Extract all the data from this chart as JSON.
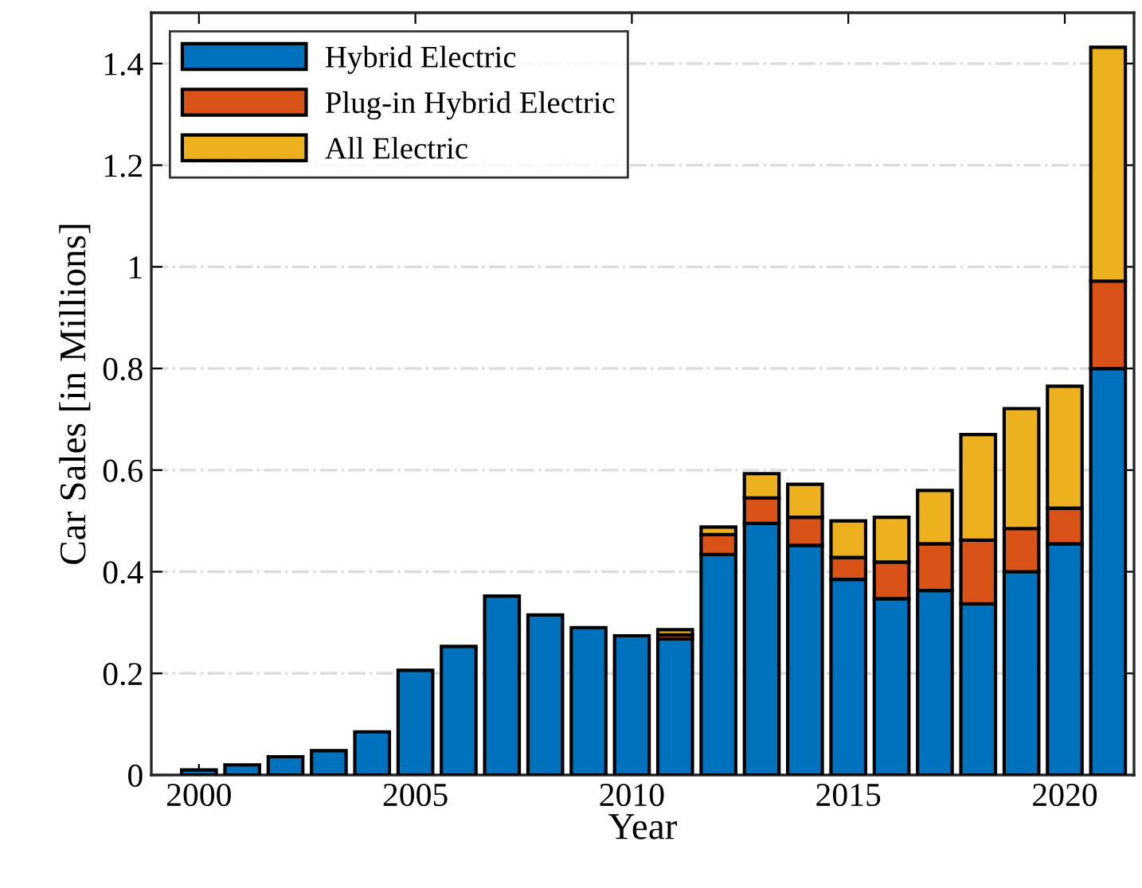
{
  "chart_data": {
    "type": "bar",
    "stacked": true,
    "xlabel": "Year",
    "ylabel": "Car Sales [in Millions]",
    "x": [
      2000,
      2001,
      2002,
      2003,
      2004,
      2005,
      2006,
      2007,
      2008,
      2009,
      2010,
      2011,
      2012,
      2013,
      2014,
      2015,
      2016,
      2017,
      2018,
      2019,
      2020,
      2021
    ],
    "series": [
      {
        "name": "Hybrid Electric",
        "color": "#0072bd",
        "values": [
          0.01,
          0.02,
          0.036,
          0.048,
          0.085,
          0.206,
          0.253,
          0.352,
          0.315,
          0.29,
          0.274,
          0.268,
          0.434,
          0.495,
          0.452,
          0.385,
          0.347,
          0.363,
          0.337,
          0.4,
          0.455,
          0.8
        ]
      },
      {
        "name": "Plug-in Hybrid Electric",
        "color": "#d95319",
        "values": [
          0,
          0,
          0,
          0,
          0,
          0,
          0,
          0,
          0,
          0,
          0,
          0.008,
          0.039,
          0.05,
          0.055,
          0.043,
          0.072,
          0.092,
          0.125,
          0.085,
          0.07,
          0.172
        ]
      },
      {
        "name": "All Electric",
        "color": "#edb120",
        "values": [
          0,
          0,
          0,
          0,
          0,
          0,
          0,
          0,
          0,
          0,
          0,
          0.01,
          0.015,
          0.048,
          0.065,
          0.072,
          0.088,
          0.105,
          0.208,
          0.236,
          0.24,
          0.46
        ]
      }
    ],
    "xlim": [
      1998.9,
      2021.6
    ],
    "xticks": [
      2000,
      2005,
      2010,
      2015,
      2020
    ],
    "ylim": [
      0,
      1.5
    ],
    "yticks": [
      0,
      {
        "value": 0.2,
        "label": "0.2"
      },
      {
        "value": 0.4,
        "label": "0.4"
      },
      {
        "value": 0.6,
        "label": "0.6"
      },
      {
        "value": 0.8,
        "label": "0.8"
      },
      1,
      {
        "value": 1.2,
        "label": "1.2"
      },
      {
        "value": 1.4,
        "label": "1.4"
      }
    ],
    "grid": "y",
    "legend": "top left"
  }
}
